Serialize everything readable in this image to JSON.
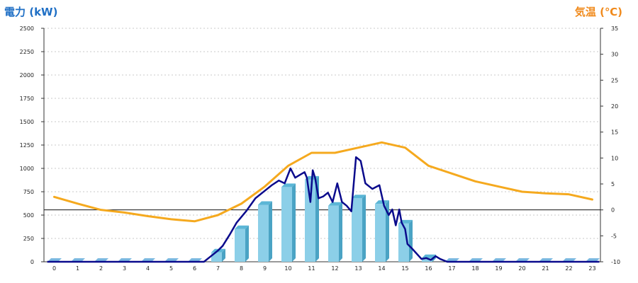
{
  "chart_data": {
    "type": "bar",
    "left_axis_title": "電力 (kW)",
    "right_axis_title": "気温 (℃)",
    "categories": [
      "0",
      "1",
      "2",
      "3",
      "4",
      "5",
      "6",
      "7",
      "8",
      "9",
      "10",
      "11",
      "12",
      "13",
      "14",
      "15",
      "16",
      "17",
      "18",
      "19",
      "20",
      "21",
      "22",
      "23"
    ],
    "y_left": {
      "min": 0,
      "max": 2500,
      "ticks": [
        0,
        250,
        500,
        750,
        1000,
        1250,
        1500,
        1750,
        2000,
        2250,
        2500
      ]
    },
    "y_right": {
      "min": -10,
      "max": 35,
      "ticks": [
        -10,
        -5,
        0,
        5,
        10,
        15,
        20,
        25,
        30,
        35
      ]
    },
    "series": [
      {
        "type": "bar",
        "axis": "left",
        "color": "#8ccfe8",
        "values": [
          0,
          0,
          0,
          0,
          0,
          0,
          0,
          100,
          350,
          610,
          800,
          880,
          600,
          680,
          620,
          410,
          40,
          0,
          0,
          0,
          0,
          0,
          0,
          0
        ]
      },
      {
        "type": "line",
        "axis": "left",
        "color": "#0a0a8c",
        "points": [
          [
            -0.3,
            0
          ],
          [
            6.4,
            0
          ],
          [
            6.7,
            60
          ],
          [
            7.0,
            120
          ],
          [
            7.2,
            170
          ],
          [
            7.5,
            290
          ],
          [
            7.8,
            420
          ],
          [
            8.2,
            540
          ],
          [
            8.6,
            680
          ],
          [
            9.0,
            760
          ],
          [
            9.3,
            820
          ],
          [
            9.6,
            870
          ],
          [
            9.85,
            840
          ],
          [
            10.1,
            1000
          ],
          [
            10.3,
            900
          ],
          [
            10.5,
            930
          ],
          [
            10.7,
            960
          ],
          [
            10.8,
            900
          ],
          [
            10.95,
            640
          ],
          [
            11.05,
            980
          ],
          [
            11.15,
            900
          ],
          [
            11.3,
            680
          ],
          [
            11.5,
            700
          ],
          [
            11.7,
            740
          ],
          [
            11.9,
            640
          ],
          [
            12.1,
            840
          ],
          [
            12.3,
            640
          ],
          [
            12.5,
            600
          ],
          [
            12.7,
            540
          ],
          [
            12.9,
            1120
          ],
          [
            13.1,
            1080
          ],
          [
            13.3,
            840
          ],
          [
            13.6,
            780
          ],
          [
            13.9,
            820
          ],
          [
            14.1,
            600
          ],
          [
            14.3,
            500
          ],
          [
            14.45,
            560
          ],
          [
            14.6,
            390
          ],
          [
            14.75,
            560
          ],
          [
            14.85,
            420
          ],
          [
            15.0,
            350
          ],
          [
            15.1,
            190
          ],
          [
            15.3,
            140
          ],
          [
            15.7,
            30
          ],
          [
            15.9,
            40
          ],
          [
            16.1,
            20
          ],
          [
            16.3,
            60
          ],
          [
            16.5,
            30
          ],
          [
            16.8,
            0
          ],
          [
            23.3,
            0
          ]
        ]
      },
      {
        "type": "line",
        "axis": "right",
        "color": "#f5a91e",
        "points": [
          [
            0,
            2.5
          ],
          [
            1,
            1.2
          ],
          [
            2,
            0
          ],
          [
            3,
            -0.5
          ],
          [
            4,
            -1.2
          ],
          [
            5,
            -1.8
          ],
          [
            6,
            -2.2
          ],
          [
            7,
            -1
          ],
          [
            8,
            1.2
          ],
          [
            9,
            4.5
          ],
          [
            10,
            8.5
          ],
          [
            11,
            11
          ],
          [
            12,
            11
          ],
          [
            13,
            12
          ],
          [
            14,
            13
          ],
          [
            15,
            12
          ],
          [
            16,
            8.5
          ],
          [
            17,
            7
          ],
          [
            18,
            5.5
          ],
          [
            19,
            4.5
          ],
          [
            20,
            3.5
          ],
          [
            21,
            3.2
          ],
          [
            22,
            3
          ],
          [
            23,
            2
          ]
        ]
      }
    ],
    "grid": true
  }
}
